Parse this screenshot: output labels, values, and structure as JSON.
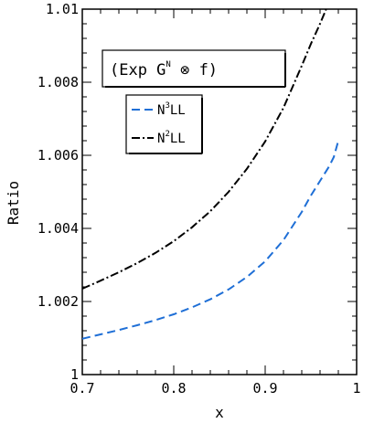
{
  "chart_data": {
    "type": "line",
    "xlabel": "x",
    "ylabel": "Ratio",
    "xlim": [
      0.7,
      1.0
    ],
    "ylim": [
      1.0,
      1.01
    ],
    "x_ticks": [
      {
        "v": 0.7,
        "label": "0.7"
      },
      {
        "v": 0.8,
        "label": "0.8"
      },
      {
        "v": 0.9,
        "label": "0.9"
      },
      {
        "v": 1.0,
        "label": "1"
      }
    ],
    "y_ticks": [
      {
        "v": 1.0,
        "label": "1"
      },
      {
        "v": 1.002,
        "label": "1.002"
      },
      {
        "v": 1.004,
        "label": "1.004"
      },
      {
        "v": 1.006,
        "label": "1.006"
      },
      {
        "v": 1.008,
        "label": "1.008"
      },
      {
        "v": 1.01,
        "label": "1.01"
      }
    ],
    "annotation": {
      "prefix": "(Exp G",
      "superscript": "N",
      "operator": " ⊗ ",
      "suffix": "f)"
    },
    "series": [
      {
        "key": "n3ll",
        "label_base": "N",
        "label_sup": "3",
        "label_rest": "LL",
        "color": "#1f6fd6",
        "dash": "9,5",
        "points": [
          [
            0.7,
            1.00098
          ],
          [
            0.72,
            1.0011
          ],
          [
            0.74,
            1.00122
          ],
          [
            0.76,
            1.00135
          ],
          [
            0.78,
            1.00149
          ],
          [
            0.8,
            1.00165
          ],
          [
            0.82,
            1.00184
          ],
          [
            0.84,
            1.00206
          ],
          [
            0.86,
            1.00233
          ],
          [
            0.88,
            1.00267
          ],
          [
            0.9,
            1.0031
          ],
          [
            0.92,
            1.00368
          ],
          [
            0.94,
            1.00445
          ],
          [
            0.95,
            1.0049
          ],
          [
            0.96,
            1.0053
          ],
          [
            0.97,
            1.0057
          ],
          [
            0.975,
            1.00595
          ],
          [
            0.98,
            1.0064
          ]
        ]
      },
      {
        "key": "n2ll",
        "label_base": "N",
        "label_sup": "2",
        "label_rest": "LL",
        "color": "#000000",
        "dash": "9,3,2,3",
        "points": [
          [
            0.7,
            1.00235
          ],
          [
            0.72,
            1.00257
          ],
          [
            0.74,
            1.0028
          ],
          [
            0.76,
            1.00305
          ],
          [
            0.78,
            1.00333
          ],
          [
            0.8,
            1.00365
          ],
          [
            0.82,
            1.00403
          ],
          [
            0.84,
            1.00447
          ],
          [
            0.86,
            1.005
          ],
          [
            0.88,
            1.00563
          ],
          [
            0.9,
            1.00638
          ],
          [
            0.92,
            1.0073
          ],
          [
            0.94,
            1.00845
          ],
          [
            0.95,
            1.00905
          ],
          [
            0.96,
            1.0096
          ],
          [
            0.97,
            1.0102
          ],
          [
            0.975,
            1.01065
          ],
          [
            0.98,
            1.0112
          ]
        ]
      }
    ]
  }
}
